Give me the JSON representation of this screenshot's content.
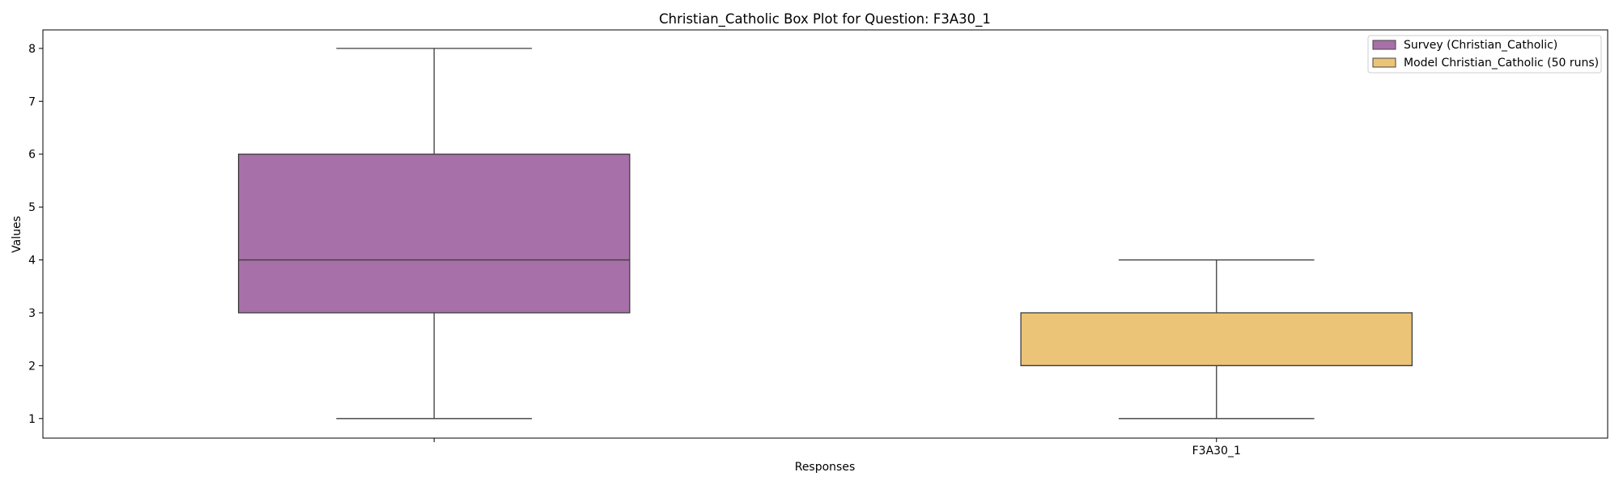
{
  "chart_data": {
    "type": "box",
    "title": "Christian_Catholic Box Plot for Question: F3A30_1",
    "xlabel": "Responses",
    "ylabel": "Values",
    "x_tick_labels": [
      "",
      "F3A30_1"
    ],
    "y_ticks": [
      1,
      2,
      3,
      4,
      5,
      6,
      7,
      8
    ],
    "ylim": [
      0.63,
      8.35
    ],
    "grid": false,
    "legend_position": "top-right",
    "series": [
      {
        "name": "Survey (Christian_Catholic)",
        "color": "#a870a8",
        "whisker_low": 1,
        "q1": 3,
        "median": 4,
        "q3": 6,
        "whisker_high": 8
      },
      {
        "name": "Model Christian_Catholic (50 runs)",
        "color": "#ecc477",
        "whisker_low": 1,
        "q1": 2,
        "median": 2,
        "q3": 3,
        "whisker_high": 4
      }
    ]
  }
}
